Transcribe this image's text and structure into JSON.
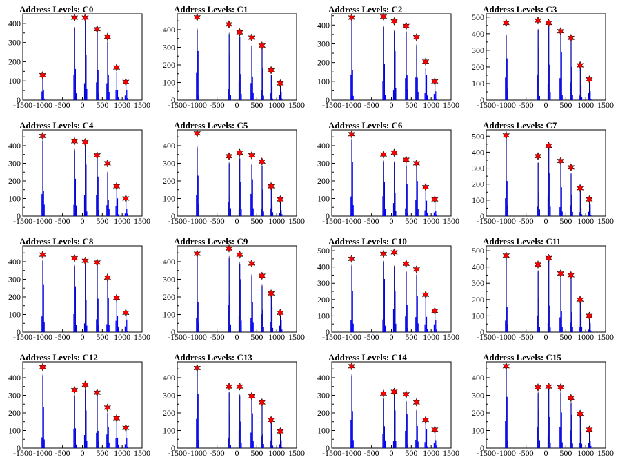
{
  "colors": {
    "histogram": "#0000ff",
    "peak_marker": "#ff0000",
    "marker_outline": "#000000",
    "axes": "#000000",
    "background": "#ffffff"
  },
  "chart_data": [
    {
      "type": "bar",
      "title": "Address Levels: C0",
      "xlim": [
        -1500,
        1500
      ],
      "ylim": [
        0,
        450
      ],
      "xticks": [
        "-1500",
        "-1000",
        "-500",
        "0",
        "500",
        "1000",
        "1500"
      ],
      "yticks": [
        "0",
        "100",
        "200",
        "300",
        "400"
      ],
      "peaks": [
        {
          "x": -1000,
          "y": 130
        },
        {
          "x": -200,
          "y": 430
        },
        {
          "x": 70,
          "y": 430
        },
        {
          "x": 370,
          "y": 370
        },
        {
          "x": 630,
          "y": 330
        },
        {
          "x": 860,
          "y": 170
        },
        {
          "x": 1090,
          "y": 95
        }
      ]
    },
    {
      "type": "bar",
      "title": "Address Levels: C1",
      "xlim": [
        -1500,
        1500
      ],
      "ylim": [
        0,
        490
      ],
      "xticks": [
        "-1500",
        "-1000",
        "-500",
        "0",
        "500",
        "1000",
        "1500"
      ],
      "yticks": [
        "0",
        "100",
        "200",
        "300",
        "400"
      ],
      "peaks": [
        {
          "x": -1000,
          "y": 470
        },
        {
          "x": -200,
          "y": 430
        },
        {
          "x": 70,
          "y": 385
        },
        {
          "x": 370,
          "y": 355
        },
        {
          "x": 630,
          "y": 310
        },
        {
          "x": 860,
          "y": 170
        },
        {
          "x": 1090,
          "y": 95
        }
      ]
    },
    {
      "type": "bar",
      "title": "Address Levels: C2",
      "xlim": [
        -1500,
        1500
      ],
      "ylim": [
        0,
        460
      ],
      "xticks": [
        "-1500",
        "-1000",
        "-500",
        "0",
        "500",
        "1000",
        "1500"
      ],
      "yticks": [
        "0",
        "100",
        "200",
        "300",
        "400"
      ],
      "peaks": [
        {
          "x": -1000,
          "y": 440
        },
        {
          "x": -200,
          "y": 445
        },
        {
          "x": 70,
          "y": 420
        },
        {
          "x": 370,
          "y": 395
        },
        {
          "x": 630,
          "y": 335
        },
        {
          "x": 860,
          "y": 205
        },
        {
          "x": 1090,
          "y": 100
        }
      ]
    },
    {
      "type": "bar",
      "title": "Address Levels: C3",
      "xlim": [
        -1500,
        1500
      ],
      "ylim": [
        0,
        520
      ],
      "xticks": [
        "-1500",
        "-1000",
        "-500",
        "0",
        "500",
        "1000",
        "1500"
      ],
      "yticks": [
        "0",
        "100",
        "200",
        "300",
        "400",
        "500"
      ],
      "peaks": [
        {
          "x": -1000,
          "y": 465
        },
        {
          "x": -200,
          "y": 480
        },
        {
          "x": 70,
          "y": 465
        },
        {
          "x": 370,
          "y": 415
        },
        {
          "x": 630,
          "y": 375
        },
        {
          "x": 860,
          "y": 210
        },
        {
          "x": 1090,
          "y": 125
        }
      ]
    },
    {
      "type": "bar",
      "title": "Address Levels: C4",
      "xlim": [
        -1500,
        1500
      ],
      "ylim": [
        0,
        490
      ],
      "xticks": [
        "-1500",
        "-1000",
        "-500",
        "0",
        "500",
        "1000",
        "1500"
      ],
      "yticks": [
        "0",
        "100",
        "200",
        "300",
        "400"
      ],
      "peaks": [
        {
          "x": -1000,
          "y": 455
        },
        {
          "x": -200,
          "y": 425
        },
        {
          "x": 70,
          "y": 420
        },
        {
          "x": 370,
          "y": 345
        },
        {
          "x": 630,
          "y": 300
        },
        {
          "x": 860,
          "y": 170
        },
        {
          "x": 1090,
          "y": 100
        }
      ]
    },
    {
      "type": "bar",
      "title": "Address Levels: C5",
      "xlim": [
        -1500,
        1500
      ],
      "ylim": [
        0,
        490
      ],
      "xticks": [
        "-1500",
        "-1000",
        "-500",
        "0",
        "500",
        "1000",
        "1500"
      ],
      "yticks": [
        "0",
        "100",
        "200",
        "300",
        "400"
      ],
      "peaks": [
        {
          "x": -1000,
          "y": 470
        },
        {
          "x": -200,
          "y": 340
        },
        {
          "x": 70,
          "y": 360
        },
        {
          "x": 370,
          "y": 345
        },
        {
          "x": 630,
          "y": 310
        },
        {
          "x": 860,
          "y": 170
        },
        {
          "x": 1090,
          "y": 95
        }
      ]
    },
    {
      "type": "bar",
      "title": "Address Levels: C6",
      "xlim": [
        -1500,
        1500
      ],
      "ylim": [
        0,
        490
      ],
      "xticks": [
        "-1500",
        "-1000",
        "-500",
        "0",
        "500",
        "1000",
        "1500"
      ],
      "yticks": [
        "0",
        "100",
        "200",
        "300",
        "400"
      ],
      "peaks": [
        {
          "x": -1000,
          "y": 465
        },
        {
          "x": -200,
          "y": 350
        },
        {
          "x": 70,
          "y": 360
        },
        {
          "x": 370,
          "y": 320
        },
        {
          "x": 630,
          "y": 300
        },
        {
          "x": 860,
          "y": 165
        },
        {
          "x": 1090,
          "y": 95
        }
      ]
    },
    {
      "type": "bar",
      "title": "Address Levels: C7",
      "xlim": [
        -1500,
        1500
      ],
      "ylim": [
        0,
        540
      ],
      "xticks": [
        "-1500",
        "-1000",
        "-500",
        "0",
        "500",
        "1000",
        "1500"
      ],
      "yticks": [
        "0",
        "100",
        "200",
        "300",
        "400",
        "500"
      ],
      "peaks": [
        {
          "x": -1000,
          "y": 505
        },
        {
          "x": -200,
          "y": 375
        },
        {
          "x": 70,
          "y": 440
        },
        {
          "x": 370,
          "y": 345
        },
        {
          "x": 630,
          "y": 305
        },
        {
          "x": 860,
          "y": 175
        },
        {
          "x": 1090,
          "y": 105
        }
      ]
    },
    {
      "type": "bar",
      "title": "Address Levels: C8",
      "xlim": [
        -1500,
        1500
      ],
      "ylim": [
        0,
        490
      ],
      "xticks": [
        "-1500",
        "-1000",
        "-500",
        "0",
        "500",
        "1000",
        "1500"
      ],
      "yticks": [
        "0",
        "100",
        "200",
        "300",
        "400"
      ],
      "peaks": [
        {
          "x": -1000,
          "y": 440
        },
        {
          "x": -200,
          "y": 420
        },
        {
          "x": 70,
          "y": 405
        },
        {
          "x": 370,
          "y": 395
        },
        {
          "x": 630,
          "y": 310
        },
        {
          "x": 860,
          "y": 195
        },
        {
          "x": 1090,
          "y": 110
        }
      ]
    },
    {
      "type": "bar",
      "title": "Address Levels: C9",
      "xlim": [
        -1500,
        1500
      ],
      "ylim": [
        0,
        490
      ],
      "xticks": [
        "-1500",
        "-1000",
        "-500",
        "0",
        "500",
        "1000",
        "1500"
      ],
      "yticks": [
        "0",
        "100",
        "200",
        "300",
        "400"
      ],
      "peaks": [
        {
          "x": -1000,
          "y": 445
        },
        {
          "x": -200,
          "y": 475
        },
        {
          "x": 70,
          "y": 440
        },
        {
          "x": 370,
          "y": 390
        },
        {
          "x": 630,
          "y": 320
        },
        {
          "x": 860,
          "y": 220
        },
        {
          "x": 1090,
          "y": 110
        }
      ]
    },
    {
      "type": "bar",
      "title": "Address Levels: C10",
      "xlim": [
        -1500,
        1500
      ],
      "ylim": [
        0,
        530
      ],
      "xticks": [
        "-1500",
        "-1000",
        "-500",
        "0",
        "500",
        "1000",
        "1500"
      ],
      "yticks": [
        "0",
        "100",
        "200",
        "300",
        "400",
        "500"
      ],
      "peaks": [
        {
          "x": -1000,
          "y": 450
        },
        {
          "x": -200,
          "y": 480
        },
        {
          "x": 70,
          "y": 490
        },
        {
          "x": 370,
          "y": 420
        },
        {
          "x": 630,
          "y": 385
        },
        {
          "x": 860,
          "y": 230
        },
        {
          "x": 1090,
          "y": 130
        }
      ]
    },
    {
      "type": "bar",
      "title": "Address Levels: C11",
      "xlim": [
        -1500,
        1500
      ],
      "ylim": [
        0,
        530
      ],
      "xticks": [
        "-1500",
        "-1000",
        "-500",
        "0",
        "500",
        "1000",
        "1500"
      ],
      "yticks": [
        "0",
        "100",
        "200",
        "300",
        "400",
        "500"
      ],
      "peaks": [
        {
          "x": -1000,
          "y": 470
        },
        {
          "x": -200,
          "y": 415
        },
        {
          "x": 70,
          "y": 455
        },
        {
          "x": 370,
          "y": 360
        },
        {
          "x": 630,
          "y": 350
        },
        {
          "x": 860,
          "y": 200
        },
        {
          "x": 1090,
          "y": 100
        }
      ]
    },
    {
      "type": "bar",
      "title": "Address Levels: C12",
      "xlim": [
        -1500,
        1500
      ],
      "ylim": [
        0,
        490
      ],
      "xticks": [
        "-1500",
        "-1000",
        "-500",
        "0",
        "500",
        "1000",
        "1500"
      ],
      "yticks": [
        "0",
        "100",
        "200",
        "300",
        "400"
      ],
      "peaks": [
        {
          "x": -1000,
          "y": 460
        },
        {
          "x": -200,
          "y": 330
        },
        {
          "x": 70,
          "y": 360
        },
        {
          "x": 370,
          "y": 315
        },
        {
          "x": 630,
          "y": 230
        },
        {
          "x": 860,
          "y": 170
        },
        {
          "x": 1090,
          "y": 115
        }
      ]
    },
    {
      "type": "bar",
      "title": "Address Levels: C13",
      "xlim": [
        -1500,
        1500
      ],
      "ylim": [
        0,
        490
      ],
      "xticks": [
        "-1500",
        "-1000",
        "-500",
        "0",
        "500",
        "1000",
        "1500"
      ],
      "yticks": [
        "0",
        "100",
        "200",
        "300",
        "400"
      ],
      "peaks": [
        {
          "x": -1000,
          "y": 455
        },
        {
          "x": -200,
          "y": 350
        },
        {
          "x": 70,
          "y": 350
        },
        {
          "x": 370,
          "y": 295
        },
        {
          "x": 630,
          "y": 260
        },
        {
          "x": 860,
          "y": 160
        },
        {
          "x": 1090,
          "y": 95
        }
      ]
    },
    {
      "type": "bar",
      "title": "Address Levels: C14",
      "xlim": [
        -1500,
        1500
      ],
      "ylim": [
        0,
        490
      ],
      "xticks": [
        "-1500",
        "-1000",
        "-500",
        "0",
        "500",
        "1000",
        "1500"
      ],
      "yticks": [
        "0",
        "100",
        "200",
        "300",
        "400"
      ],
      "peaks": [
        {
          "x": -1000,
          "y": 465
        },
        {
          "x": -200,
          "y": 310
        },
        {
          "x": 70,
          "y": 320
        },
        {
          "x": 370,
          "y": 305
        },
        {
          "x": 630,
          "y": 260
        },
        {
          "x": 860,
          "y": 160
        },
        {
          "x": 1090,
          "y": 105
        }
      ]
    },
    {
      "type": "bar",
      "title": "Address Levels: C15",
      "xlim": [
        -1500,
        1500
      ],
      "ylim": [
        0,
        490
      ],
      "xticks": [
        "-1500",
        "-1000",
        "-500",
        "0",
        "500",
        "1000",
        "1500"
      ],
      "yticks": [
        "0",
        "100",
        "200",
        "300",
        "400"
      ],
      "peaks": [
        {
          "x": -1000,
          "y": 465
        },
        {
          "x": -200,
          "y": 345
        },
        {
          "x": 70,
          "y": 350
        },
        {
          "x": 370,
          "y": 345
        },
        {
          "x": 630,
          "y": 285
        },
        {
          "x": 860,
          "y": 195
        },
        {
          "x": 1090,
          "y": 105
        }
      ]
    }
  ]
}
